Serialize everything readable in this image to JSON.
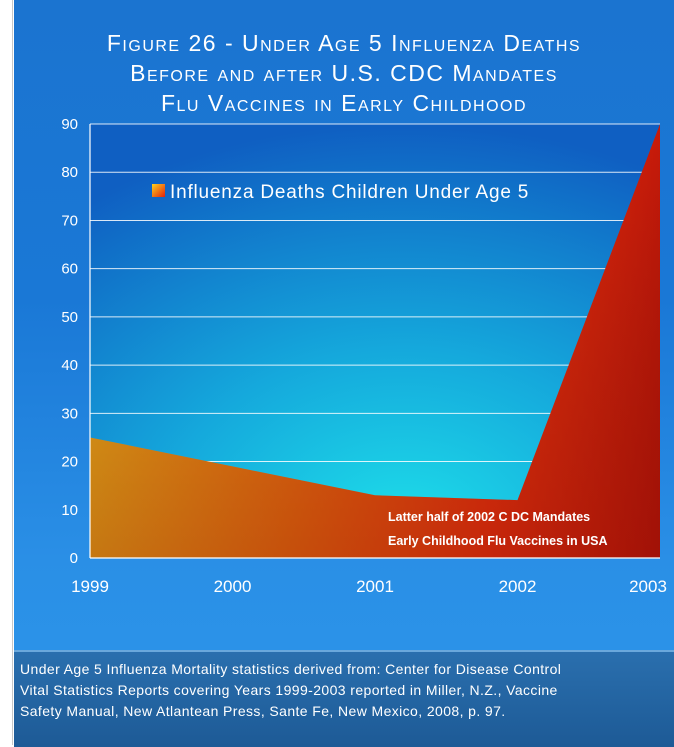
{
  "chart_data": {
    "type": "area",
    "title_lines": [
      "Figure 26 - Under Age 5 Influenza Deaths",
      "Before and after U.S. CDC Mandates",
      "Flu Vaccines in Early Childhood"
    ],
    "categories": [
      "1999",
      "2000",
      "2001",
      "2002",
      "2003"
    ],
    "series": [
      {
        "name": "Influenza Deaths Children Under Age 5",
        "values": [
          25,
          19,
          13,
          12,
          90
        ]
      }
    ],
    "ylim": [
      0,
      90
    ],
    "yticks": [
      "0",
      "10",
      "20",
      "30",
      "40",
      "50",
      "60",
      "70",
      "80",
      "90"
    ],
    "grid": true,
    "legend_position": "top-center",
    "annotation_lines": [
      "Latter half of 2002 C DC Mandates",
      "Early Childhood Flu Vaccines in USA"
    ],
    "colors": {
      "area_light": "#ffb21a",
      "area_mid": "#ff4a10",
      "area_dark": "#9a0f08",
      "plot_light": "#1ad0e6",
      "plot_dark": "#0f62c4"
    }
  },
  "caption": {
    "lines": [
      "Under Age 5 Influenza Mortality statistics derived from: Center for Disease Control",
      "Vital Statistics Reports covering Years 1999-2003 reported in Miller, N.Z., Vaccine",
      "Safety Manual, New Atlantean Press,  Sante Fe, New Mexico, 2008, p. 97."
    ]
  }
}
